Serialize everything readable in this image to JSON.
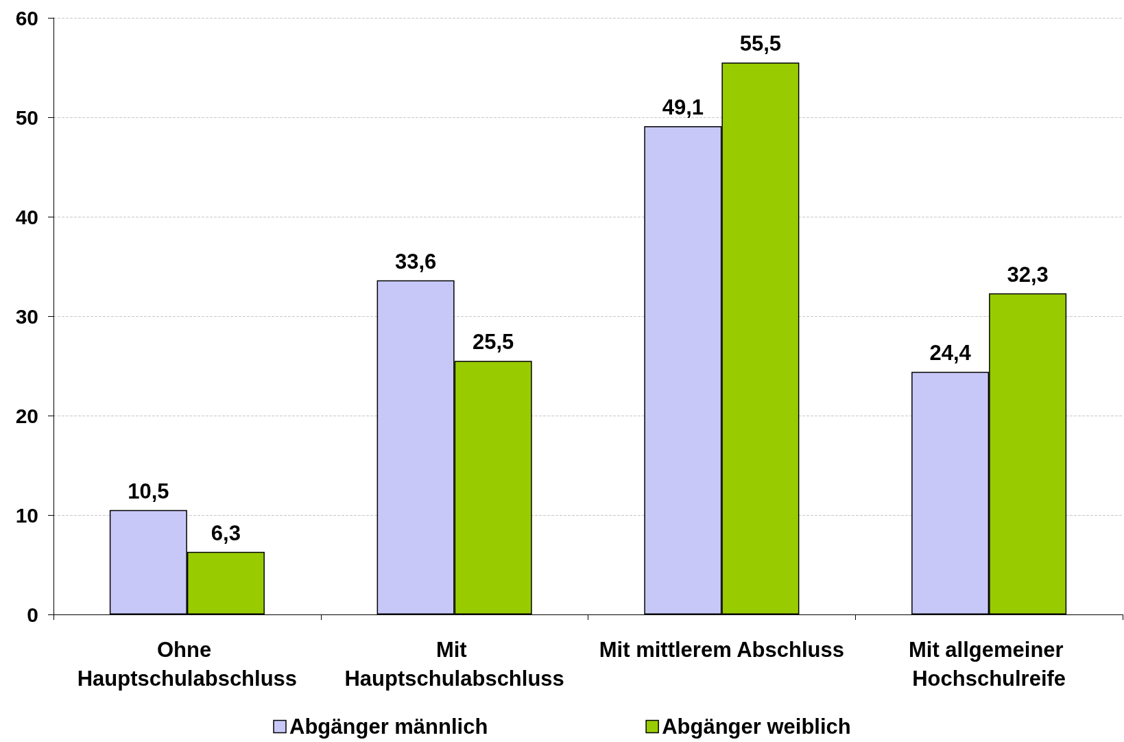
{
  "chart_data": {
    "type": "bar",
    "categories": [
      "Ohne Hauptschulabschluss",
      "Mit Hauptschulabschluss",
      "Mit mittlerem Abschluss",
      "Mit allgemeiner Hochschulreife"
    ],
    "series": [
      {
        "name": "Abgänger männlich",
        "color": "#c8c8f8",
        "values": [
          10.5,
          33.6,
          49.1,
          24.4
        ],
        "value_labels": [
          "10,5",
          "33,6",
          "49,1",
          "24,4"
        ]
      },
      {
        "name": "Abgänger weiblich",
        "color": "#99cc00",
        "values": [
          6.3,
          25.5,
          55.5,
          32.3
        ],
        "value_labels": [
          "6,3",
          "25,5",
          "55,5",
          "32,3"
        ]
      }
    ],
    "ylim": [
      0,
      60
    ],
    "yticks": [
      0,
      10,
      20,
      30,
      40,
      50,
      60
    ],
    "grid": "y",
    "legend": "bottom"
  }
}
